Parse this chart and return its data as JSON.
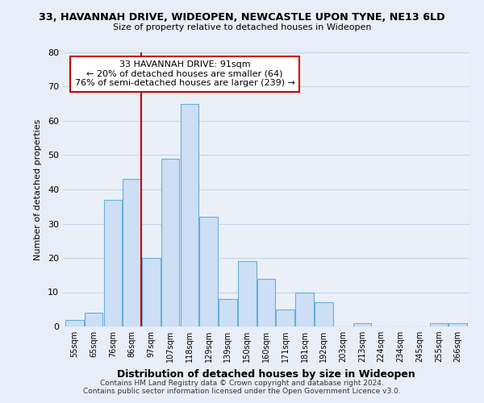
{
  "title1": "33, HAVANNAH DRIVE, WIDEOPEN, NEWCASTLE UPON TYNE, NE13 6LD",
  "title2": "Size of property relative to detached houses in Wideopen",
  "xlabel": "Distribution of detached houses by size in Wideopen",
  "ylabel": "Number of detached properties",
  "bar_labels": [
    "55sqm",
    "65sqm",
    "76sqm",
    "86sqm",
    "97sqm",
    "107sqm",
    "118sqm",
    "129sqm",
    "139sqm",
    "150sqm",
    "160sqm",
    "171sqm",
    "181sqm",
    "192sqm",
    "203sqm",
    "213sqm",
    "224sqm",
    "234sqm",
    "245sqm",
    "255sqm",
    "266sqm"
  ],
  "bar_values": [
    2,
    4,
    37,
    43,
    20,
    49,
    65,
    32,
    8,
    19,
    14,
    5,
    10,
    7,
    0,
    1,
    0,
    0,
    0,
    1,
    1
  ],
  "bar_color": "#ccdff5",
  "bar_edge_color": "#6aaed6",
  "vline_x": 3.5,
  "vline_color": "#cc0000",
  "annotation_text": "33 HAVANNAH DRIVE: 91sqm\n← 20% of detached houses are smaller (64)\n76% of semi-detached houses are larger (239) →",
  "annotation_box_color": "#ffffff",
  "annotation_box_edge": "#cc0000",
  "ylim": [
    0,
    80
  ],
  "yticks": [
    0,
    10,
    20,
    30,
    40,
    50,
    60,
    70,
    80
  ],
  "footer1": "Contains HM Land Registry data © Crown copyright and database right 2024.",
  "footer2": "Contains public sector information licensed under the Open Government Licence v3.0.",
  "background_color": "#e8eef7",
  "plot_bg_color": "#eaf0f8",
  "grid_color": "#c8d4e8"
}
